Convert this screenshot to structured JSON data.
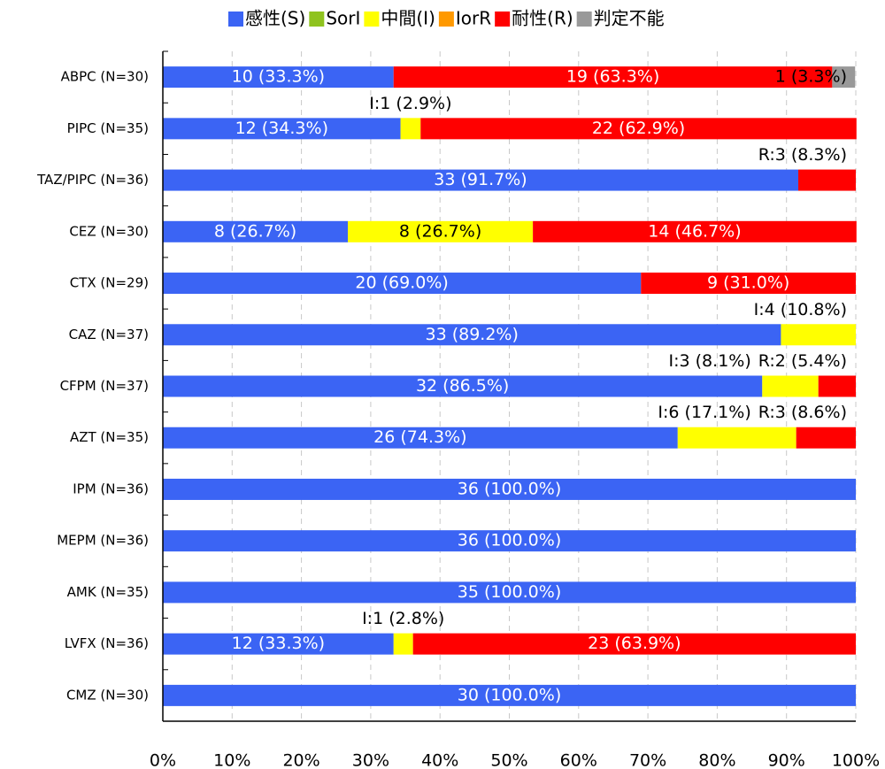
{
  "chart_data": {
    "type": "stacked-bar",
    "orientation": "horizontal",
    "categories": [
      "ABPC (N=30)",
      "PIPC (N=35)",
      "TAZ/PIPC (N=36)",
      "CEZ (N=30)",
      "CTX (N=29)",
      "CAZ (N=37)",
      "CFPM (N=37)",
      "AZT (N=35)",
      "IPM (N=36)",
      "MEPM (N=36)",
      "AMK (N=35)",
      "LVFX (N=36)",
      "CMZ (N=30)"
    ],
    "series": [
      {
        "name": "感性(S)",
        "color": "#3b64f4",
        "values": [
          33.3,
          34.3,
          91.7,
          26.7,
          69.0,
          89.2,
          86.5,
          74.3,
          100,
          100,
          100,
          33.3,
          100
        ],
        "value_labels": [
          "10 (33.3%)",
          "12 (34.3%)",
          "33 (91.7%)",
          "8 (26.7%)",
          "20 (69.0%)",
          "33 (89.2%)",
          "32 (86.5%)",
          "26 (74.3%)",
          "36 (100.0%)",
          "36 (100.0%)",
          "35 (100.0%)",
          "12 (33.3%)",
          "30 (100.0%)"
        ]
      },
      {
        "name": "SorI",
        "color": "#8fc31f",
        "values": [
          0,
          0,
          0,
          0,
          0,
          0,
          0,
          0,
          0,
          0,
          0,
          0,
          0
        ]
      },
      {
        "name": "中間(I)",
        "color": "#ffff00",
        "values": [
          0,
          2.9,
          0,
          26.7,
          0,
          10.8,
          8.1,
          17.1,
          0,
          0,
          0,
          2.8,
          0
        ],
        "value_labels": [
          null,
          "I:1 (2.9%)",
          null,
          "8 (26.7%)",
          null,
          "I:4 (10.8%)",
          "I:3 (8.1%)",
          "I:6 (17.1%)",
          null,
          null,
          null,
          "I:1 (2.8%)",
          null
        ]
      },
      {
        "name": "IorR",
        "color": "#ff9900",
        "values": [
          0,
          0,
          0,
          0,
          0,
          0,
          0,
          0,
          0,
          0,
          0,
          0,
          0
        ]
      },
      {
        "name": "耐性(R)",
        "color": "#ff0000",
        "values": [
          63.3,
          62.9,
          8.3,
          46.7,
          31.0,
          0,
          5.4,
          8.6,
          0,
          0,
          0,
          63.9,
          0
        ],
        "value_labels": [
          "19 (63.3%)",
          "22 (62.9%)",
          "R:3 (8.3%)",
          "14 (46.7%)",
          "9 (31.0%)",
          null,
          "R:2 (5.4%)",
          "R:3 (8.6%)",
          null,
          null,
          null,
          "23 (63.9%)",
          null
        ]
      },
      {
        "name": "判定不能",
        "color": "#999999",
        "values": [
          3.3,
          0,
          0,
          0,
          0,
          0,
          0,
          0,
          0,
          0,
          0,
          0,
          0
        ],
        "value_labels": [
          "1 (3.3%)",
          null,
          null,
          null,
          null,
          null,
          null,
          null,
          null,
          null,
          null,
          null,
          null
        ]
      }
    ],
    "xlim": [
      0,
      100
    ],
    "xticks": [
      {
        "value": 0,
        "label": "0%"
      },
      {
        "value": 10,
        "label": "10%"
      },
      {
        "value": 20,
        "label": "20%"
      },
      {
        "value": 30,
        "label": "30%"
      },
      {
        "value": 40,
        "label": "40%"
      },
      {
        "value": 50,
        "label": "50%"
      },
      {
        "value": 60,
        "label": "60%"
      },
      {
        "value": 70,
        "label": "70%"
      },
      {
        "value": 80,
        "label": "80%"
      },
      {
        "value": 90,
        "label": "90%"
      },
      {
        "value": 100,
        "label": "100%"
      }
    ],
    "grid": true,
    "legend": "top"
  }
}
